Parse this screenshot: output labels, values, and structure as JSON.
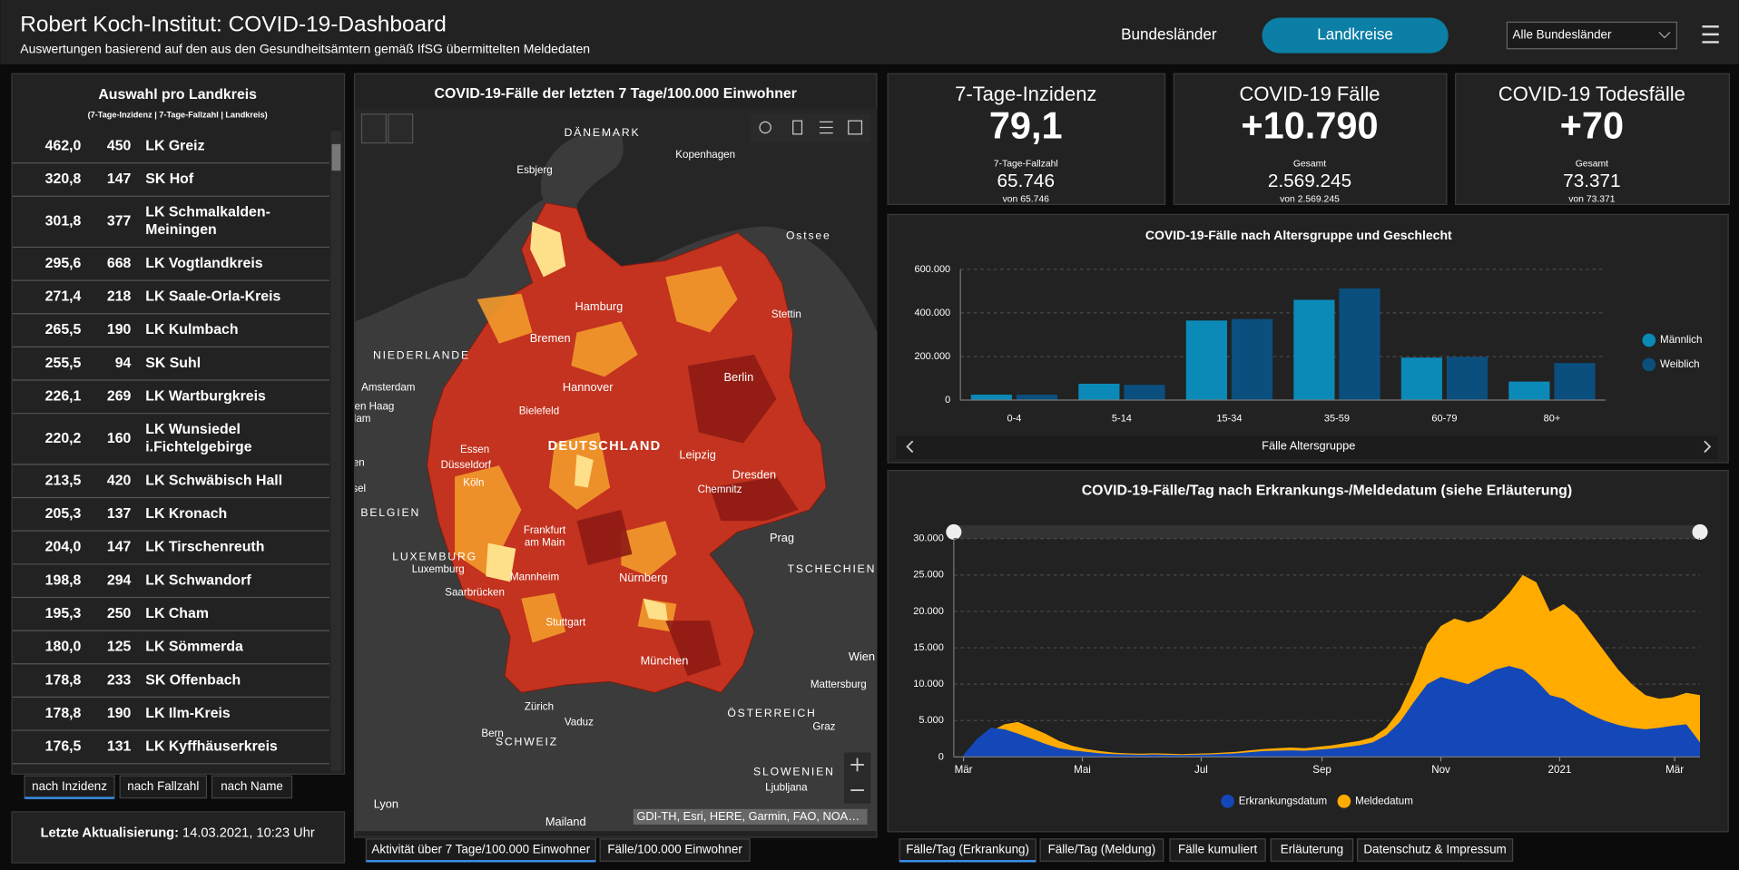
{
  "header": {
    "title": "Robert Koch-Institut: COVID-19-Dashboard",
    "subtitle": "Auswertungen basierend auf den aus den Gesundheitsämtern gemäß IfSG übermittelten Meldedaten",
    "nav": [
      "Bundesländer",
      "Landkreise"
    ],
    "select": "Alle Bundesländer"
  },
  "landkreise": {
    "title": "Auswahl pro Landkreis",
    "subtitle": "(7-Tage-Inzidenz | 7-Tage-Fallzahl | Landkreis)",
    "rows": [
      {
        "incidence": "462,0",
        "cases": "450",
        "name": "LK Greiz"
      },
      {
        "incidence": "320,8",
        "cases": "147",
        "name": "SK Hof"
      },
      {
        "incidence": "301,8",
        "cases": "377",
        "name": "LK Schmalkalden-Meiningen"
      },
      {
        "incidence": "295,6",
        "cases": "668",
        "name": "LK Vogtlandkreis"
      },
      {
        "incidence": "271,4",
        "cases": "218",
        "name": "LK Saale-Orla-Kreis"
      },
      {
        "incidence": "265,5",
        "cases": "190",
        "name": "LK Kulmbach"
      },
      {
        "incidence": "255,5",
        "cases": "94",
        "name": "SK Suhl"
      },
      {
        "incidence": "226,1",
        "cases": "269",
        "name": "LK Wartburgkreis"
      },
      {
        "incidence": "220,2",
        "cases": "160",
        "name": "LK Wunsiedel i.Fichtelgebirge"
      },
      {
        "incidence": "213,5",
        "cases": "420",
        "name": "LK Schwäbisch Hall"
      },
      {
        "incidence": "205,3",
        "cases": "137",
        "name": "LK Kronach"
      },
      {
        "incidence": "204,0",
        "cases": "147",
        "name": "LK Tirschenreuth"
      },
      {
        "incidence": "198,8",
        "cases": "294",
        "name": "LK Schwandorf"
      },
      {
        "incidence": "195,3",
        "cases": "250",
        "name": "LK Cham"
      },
      {
        "incidence": "180,0",
        "cases": "125",
        "name": "LK Sömmerda"
      },
      {
        "incidence": "178,8",
        "cases": "233",
        "name": "SK Offenbach"
      },
      {
        "incidence": "178,8",
        "cases": "190",
        "name": "LK Ilm-Kreis"
      },
      {
        "incidence": "176,5",
        "cases": "131",
        "name": "LK Kyffhäuserkreis"
      }
    ],
    "sort_tabs": [
      "nach Inzidenz",
      "nach Fallzahl",
      "nach Name"
    ],
    "update_label": "Letzte Aktualisierung:",
    "update_value": "14.03.2021, 10:23 Uhr"
  },
  "map": {
    "title": "COVID-19-Fälle der letzten 7 Tage/100.000 Einwohner",
    "labels": [
      "DÄNEMARK",
      "Kopenhagen",
      "Esbjerg",
      "Ostsee",
      "Hamburg",
      "Stettin",
      "NIEDERLANDE",
      "Amsterdam",
      "Bremen",
      "Hannover",
      "Berlin",
      "Bielefeld",
      "DEUTSCHLAND",
      "Leipzig",
      "Essen",
      "Düsseldorf",
      "Köln",
      "Dresden",
      "Chemnitz",
      "BELGIEN",
      "Frankfurt",
      "am Main",
      "Prag",
      "LUXEMBURG",
      "Luxemburg",
      "Mannheim",
      "Saarbrücken",
      "Nürnberg",
      "TSCHECHIEN",
      "Stuttgart",
      "München",
      "Wien",
      "Zürich",
      "Vaduz",
      "ÖSTERREICH",
      "Graz",
      "Bern",
      "SCHWEIZ",
      "SLOWENIEN",
      "Ljubljana",
      "Lyon",
      "Mailand",
      "Den Haag",
      "Rotterdam",
      "Antwerpen",
      "Brüssel",
      "Mattersburg"
    ],
    "attribution": "GDI-TH, Esri, HERE, Garmin, FAO, NOA…",
    "tabs": [
      "Aktivität über 7 Tage/100.000 Einwohner",
      "Fälle/100.000 Einwohner"
    ]
  },
  "kpis": [
    {
      "title": "7-Tage-Inzidenz",
      "value": "79,1",
      "sub_label": "7-Tage-Fallzahl",
      "sub_value": "65.746",
      "sub_note": "von 65.746"
    },
    {
      "title": "COVID-19 Fälle",
      "value": "+10.790",
      "sub_label": "Gesamt",
      "sub_value": "2.569.245",
      "sub_note": "von 2.569.245"
    },
    {
      "title": "COVID-19 Todesfälle",
      "value": "+70",
      "sub_label": "Gesamt",
      "sub_value": "73.371",
      "sub_note": "von 73.371"
    }
  ],
  "chart_data": [
    {
      "type": "bar",
      "title": "COVID-19-Fälle nach Altersgruppe und Geschlecht",
      "x_label": "Fälle Altersgruppe",
      "categories": [
        "0-4",
        "5-14",
        "15-34",
        "35-59",
        "60-79",
        "80+"
      ],
      "series": [
        {
          "name": "Männlich",
          "color": "#0b8ab8",
          "values": [
            25000,
            75000,
            365000,
            460000,
            195000,
            85000
          ]
        },
        {
          "name": "Weiblich",
          "color": "#0a4f7e",
          "values": [
            25000,
            70000,
            372000,
            512000,
            198000,
            170000
          ]
        }
      ],
      "ylim": [
        0,
        600000
      ],
      "yticks": [
        0,
        {
          "value": 200000,
          "label": "200.000"
        },
        {
          "value": 400000,
          "label": "400.000"
        },
        {
          "value": 600000,
          "label": "600.000"
        }
      ],
      "grid": true,
      "legend": "right"
    },
    {
      "type": "area",
      "title": "COVID-19-Fälle/Tag nach Erkrankungs-/Meldedatum (siehe Erläuterung)",
      "x": [
        0,
        7,
        14,
        21,
        28,
        35,
        42,
        49,
        56,
        63,
        70,
        77,
        84,
        91,
        98,
        105,
        112,
        119,
        126,
        133,
        140,
        147,
        154,
        161,
        168,
        175,
        182,
        189,
        196,
        203,
        210,
        217,
        224,
        231,
        238,
        245,
        252,
        259,
        266,
        273,
        280,
        287,
        294,
        301,
        308,
        315,
        322,
        329,
        336,
        343,
        350,
        357,
        364,
        371,
        378
      ],
      "series": [
        {
          "name": "Meldedatum",
          "color": "#ffab00",
          "values": [
            100,
            1500,
            3500,
            4500,
            4800,
            4000,
            3200,
            2200,
            1500,
            1100,
            800,
            600,
            500,
            450,
            500,
            450,
            400,
            450,
            500,
            600,
            700,
            900,
            1100,
            1200,
            1300,
            1200,
            1400,
            1600,
            1900,
            2200,
            2700,
            4000,
            6500,
            10500,
            15500,
            18000,
            19000,
            18500,
            19000,
            20500,
            22500,
            25000,
            24000,
            20000,
            21000,
            19500,
            17000,
            14500,
            12000,
            10000,
            8500,
            8000,
            8200,
            8800,
            8500
          ]
        },
        {
          "name": "Erkrankungsdatum",
          "color": "#1448b8",
          "values": [
            300,
            2500,
            4000,
            3800,
            3200,
            2500,
            1800,
            1200,
            900,
            700,
            500,
            400,
            350,
            300,
            350,
            300,
            280,
            320,
            350,
            420,
            500,
            650,
            800,
            850,
            900,
            850,
            1000,
            1150,
            1350,
            1600,
            2000,
            3000,
            4800,
            7500,
            10000,
            11000,
            10500,
            10000,
            11000,
            12000,
            12500,
            12000,
            10500,
            8500,
            8000,
            6800,
            5800,
            5000,
            4400,
            4000,
            3800,
            4000,
            4300,
            4500,
            2000
          ]
        }
      ],
      "xlim": [
        -5,
        378
      ],
      "xticks": [
        {
          "value": 0,
          "label": "Mär"
        },
        {
          "value": 61,
          "label": "Mai"
        },
        {
          "value": 122,
          "label": "Jul"
        },
        {
          "value": 184,
          "label": "Sep"
        },
        {
          "value": 245,
          "label": "Nov"
        },
        {
          "value": 306,
          "label": "2021"
        },
        {
          "value": 365,
          "label": "Mär"
        }
      ],
      "ylim": [
        0,
        30000
      ],
      "yticks": [
        0,
        {
          "value": 5000,
          "label": "5.000"
        },
        {
          "value": 10000,
          "label": "10.000"
        },
        {
          "value": 15000,
          "label": "15.000"
        },
        {
          "value": 20000,
          "label": "20.000"
        },
        {
          "value": 25000,
          "label": "25.000"
        },
        {
          "value": 30000,
          "label": "30.000"
        }
      ],
      "grid": true,
      "legend": "bottom"
    }
  ],
  "bottom_tabs": [
    "Fälle/Tag (Erkrankung)",
    "Fälle/Tag (Meldung)",
    "Fälle kumuliert",
    "Erläuterung",
    "Datenschutz & Impressum"
  ]
}
